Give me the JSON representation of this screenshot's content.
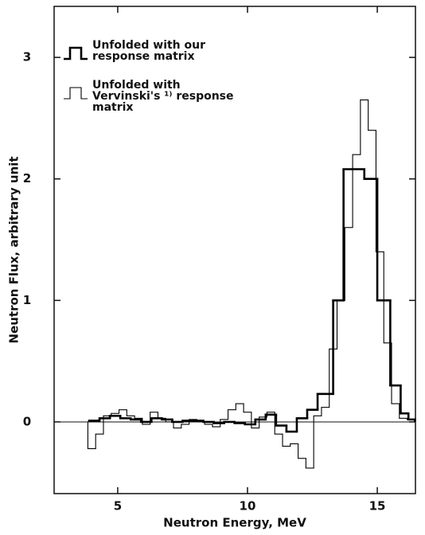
{
  "chart_data": {
    "type": "step",
    "xlabel": "Neutron  Energy, MeV",
    "ylabel": "Neutron  Flux, arbitrary unit",
    "xlim": [
      2.55,
      16.47
    ],
    "xticks": [
      5,
      10,
      15
    ],
    "ylim": [
      -0.59,
      3.42
    ],
    "yticks": [
      0,
      1,
      2,
      3
    ],
    "legend": "upper left",
    "series": [
      {
        "name": "Unfolded with our response matrix",
        "color": "#000000",
        "bins": [
          3.9,
          4.3,
          4.7,
          5.1,
          5.5,
          5.9,
          6.3,
          6.7,
          7.1,
          7.5,
          7.9,
          8.3,
          8.7,
          9.1,
          9.5,
          9.9,
          10.3,
          10.7,
          11.1,
          11.5,
          11.9,
          12.3,
          12.7,
          13.3,
          13.7,
          14.5,
          15.0,
          15.5,
          15.9,
          16.2,
          16.45
        ],
        "values": [
          0.01,
          0.03,
          0.05,
          0.03,
          0.02,
          0.0,
          0.03,
          0.02,
          0.0,
          0.01,
          0.01,
          0.0,
          -0.01,
          0.0,
          -0.01,
          -0.02,
          0.02,
          0.06,
          -0.03,
          -0.08,
          0.03,
          0.1,
          0.23,
          1.0,
          2.08,
          2.0,
          1.0,
          0.3,
          0.07,
          0.02
        ]
      },
      {
        "name": "Unfolded with Vervinski's ¹⁾ response matrix",
        "color": "#000000",
        "bins": [
          3.85,
          4.15,
          4.45,
          4.75,
          5.05,
          5.35,
          5.65,
          5.95,
          6.25,
          6.55,
          6.85,
          7.15,
          7.45,
          7.75,
          8.05,
          8.35,
          8.65,
          8.95,
          9.25,
          9.55,
          9.85,
          10.15,
          10.45,
          10.75,
          11.05,
          11.35,
          11.65,
          11.95,
          12.25,
          12.55,
          12.85,
          13.15,
          13.45,
          13.75,
          14.05,
          14.35,
          14.65,
          14.95,
          15.25,
          15.55,
          15.85,
          16.15,
          16.45
        ],
        "values": [
          -0.22,
          -0.1,
          0.05,
          0.07,
          0.1,
          0.05,
          0.03,
          -0.02,
          0.08,
          0.03,
          0.0,
          -0.05,
          -0.02,
          0.02,
          0.0,
          -0.02,
          -0.04,
          0.02,
          0.1,
          0.15,
          0.08,
          -0.05,
          0.04,
          0.08,
          -0.1,
          -0.2,
          -0.18,
          -0.3,
          -0.38,
          0.05,
          0.12,
          0.6,
          1.0,
          1.6,
          2.2,
          2.65,
          2.4,
          1.4,
          0.65,
          0.15,
          0.03,
          0.02
        ]
      }
    ]
  }
}
